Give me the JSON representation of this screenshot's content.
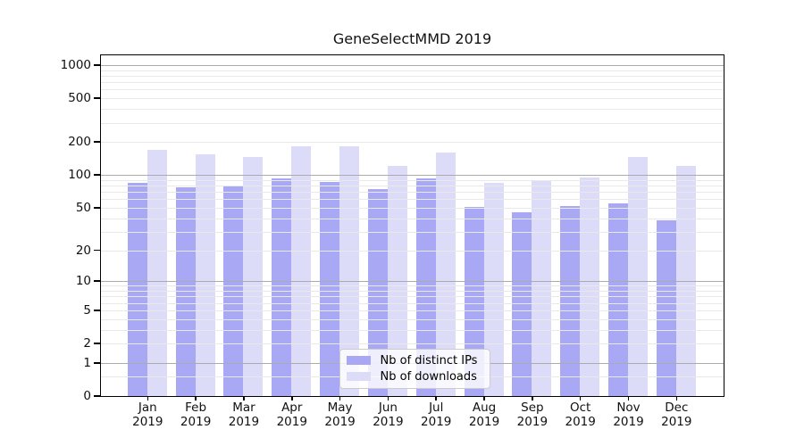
{
  "title": "GeneSelectMMD 2019",
  "colors": {
    "bar_distinct_ips": "#a8a8f5",
    "bar_downloads": "#dcdcf9",
    "major_grid": "#ababab",
    "minor_grid": "#e9e9e9",
    "axis": "#000000",
    "text": "#111111"
  },
  "legend": {
    "items": [
      "Nb of distinct IPs",
      "Nb of downloads"
    ]
  },
  "chart_data": {
    "type": "bar",
    "title": "GeneSelectMMD 2019",
    "categories": [
      "Jan 2019",
      "Feb 2019",
      "Mar 2019",
      "Apr 2019",
      "May 2019",
      "Jun 2019",
      "Jul 2019",
      "Aug 2019",
      "Sep 2019",
      "Oct 2019",
      "Nov 2019",
      "Dec 2019"
    ],
    "series": [
      {
        "name": "Nb of distinct IPs",
        "color": "#a8a8f5",
        "values": [
          84,
          76,
          80,
          92,
          86,
          74,
          93,
          50,
          45,
          51,
          54,
          38
        ]
      },
      {
        "name": "Nb of downloads",
        "color": "#dcdcf9",
        "values": [
          168,
          154,
          144,
          180,
          180,
          119,
          160,
          84,
          89,
          94,
          145,
          121
        ]
      }
    ],
    "xlabel": "",
    "ylabel": "",
    "yscale": "log1p",
    "ylim": [
      0,
      1228
    ],
    "y_ticks": [
      0,
      1,
      2,
      5,
      10,
      20,
      50,
      100,
      200,
      500,
      1000
    ],
    "gridlines": {
      "major": [
        1,
        10,
        100,
        1000
      ],
      "minor": [
        0.5,
        2,
        3,
        4,
        5,
        6,
        7,
        8,
        9,
        20,
        30,
        40,
        50,
        60,
        70,
        80,
        90,
        200,
        300,
        400,
        500,
        600,
        700,
        800,
        900
      ]
    },
    "grid": "on",
    "legend_position": "lower center"
  }
}
